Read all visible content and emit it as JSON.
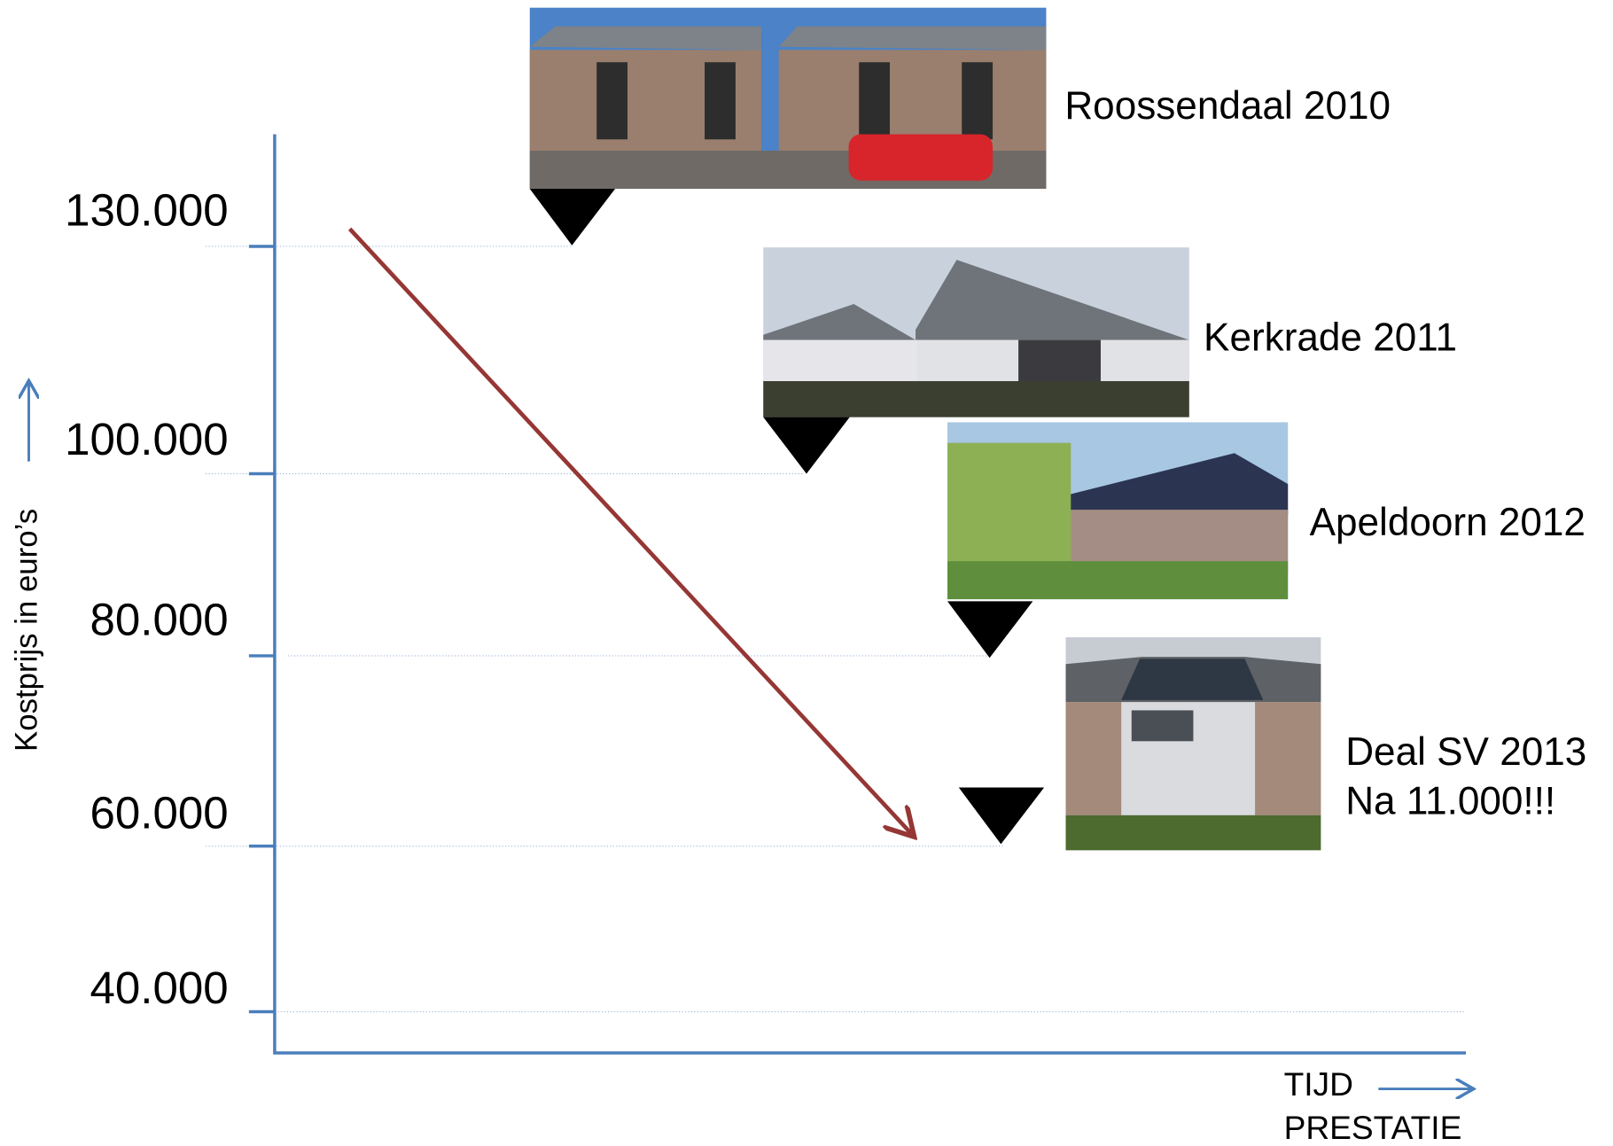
{
  "y_axis": {
    "label": "Kostprijs in euro’s",
    "ticks": [
      "130.000",
      "100.000",
      "80.000",
      "60.000",
      "40.000"
    ]
  },
  "x_axis": {
    "label_lines": [
      "TIJD",
      "PRESTATIE"
    ]
  },
  "projects": [
    {
      "label_lines": [
        "Roossendaal 2010"
      ]
    },
    {
      "label_lines": [
        "Kerkrade 2011"
      ]
    },
    {
      "label_lines": [
        "Apeldoorn 2012"
      ]
    },
    {
      "label_lines": [
        "Deal SV 2013",
        "Na 11.000!!!"
      ]
    }
  ]
}
